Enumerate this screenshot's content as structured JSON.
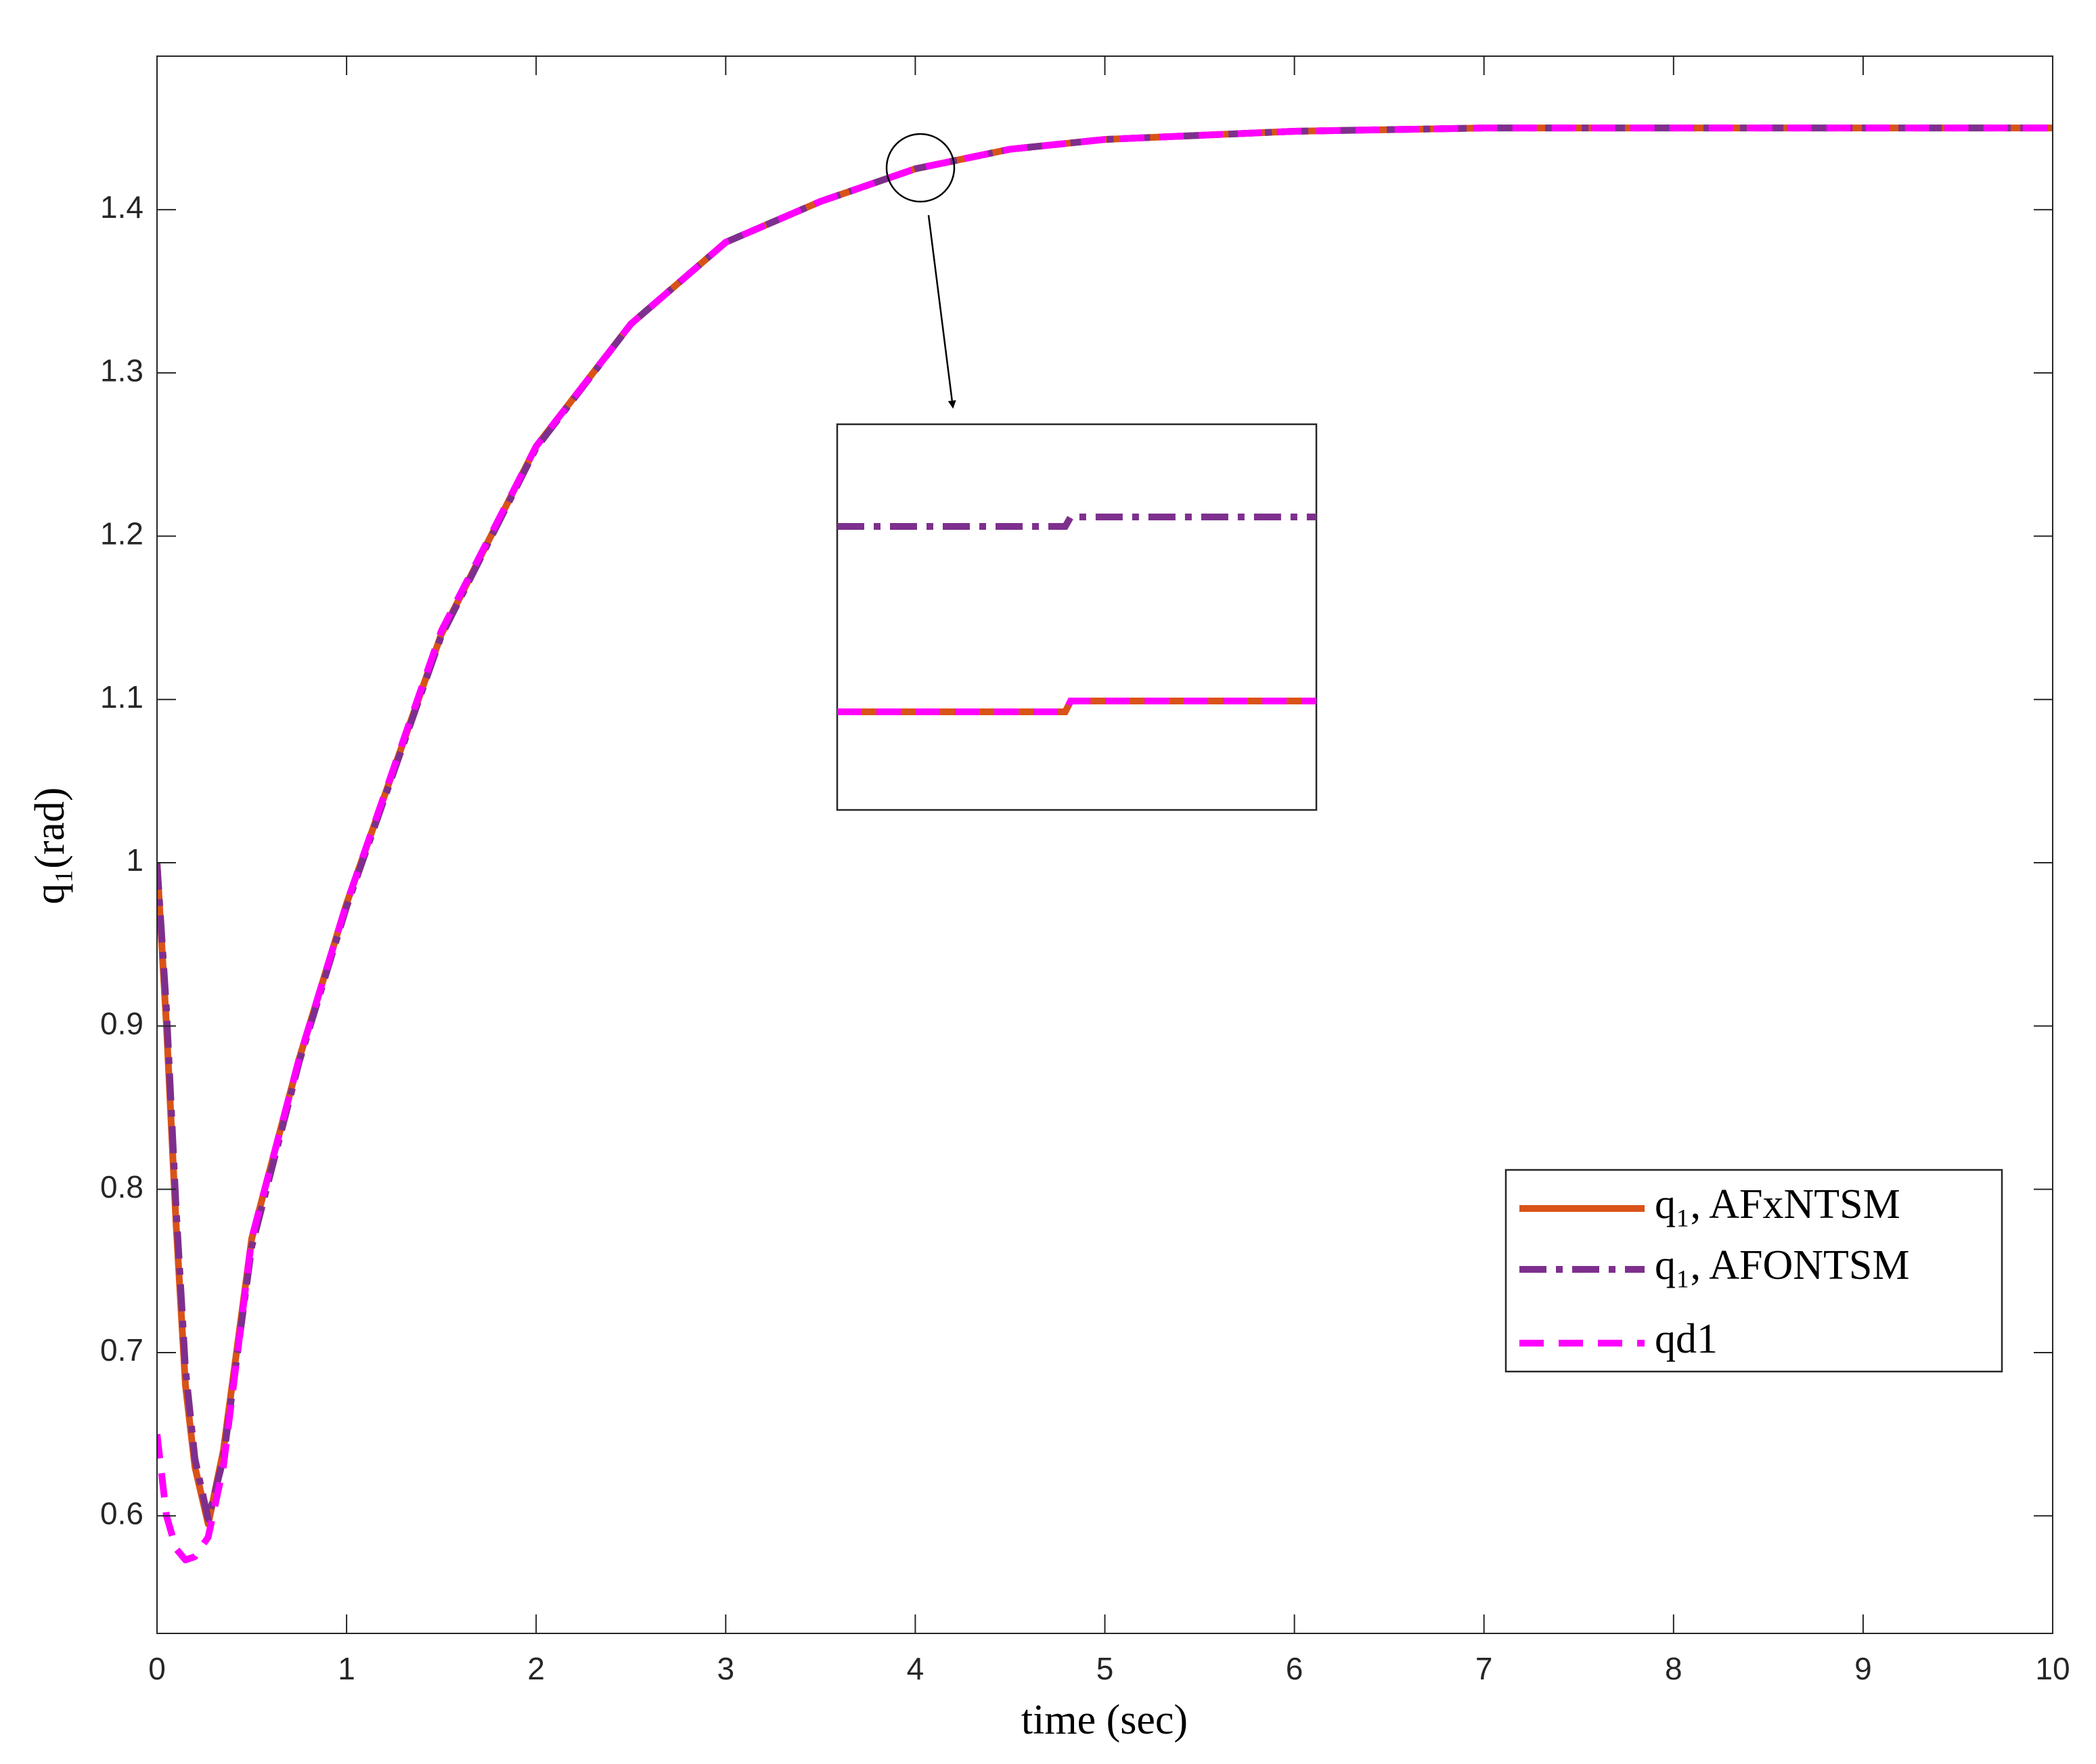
{
  "chart_data": {
    "type": "line",
    "xlabel": "time (sec)",
    "ylabel": "q₁(rad)",
    "x": [
      0,
      0.05,
      0.1,
      0.15,
      0.2,
      0.27,
      0.35,
      0.5,
      0.75,
      1,
      1.5,
      2,
      2.5,
      3,
      3.5,
      4,
      4.5,
      5,
      6,
      7,
      8,
      9,
      10
    ],
    "series": [
      {
        "name": "q₁, AFxNTSM",
        "color": "#d95319",
        "dash": "solid",
        "values": [
          1.0,
          0.9,
          0.78,
          0.68,
          0.63,
          0.595,
          0.64,
          0.77,
          0.88,
          0.975,
          1.14,
          1.255,
          1.33,
          1.38,
          1.405,
          1.425,
          1.437,
          1.443,
          1.448,
          1.45,
          1.45,
          1.45,
          1.45
        ]
      },
      {
        "name": "q₁, AFONTSM",
        "color": "#7e2f8e",
        "dash": "dashdot",
        "values": [
          1.0,
          0.91,
          0.79,
          0.69,
          0.635,
          0.598,
          0.635,
          0.765,
          0.878,
          0.973,
          1.139,
          1.254,
          1.33,
          1.38,
          1.405,
          1.425,
          1.437,
          1.443,
          1.448,
          1.45,
          1.45,
          1.45,
          1.45
        ]
      },
      {
        "name": "qd1",
        "color": "#ff00ff",
        "dash": "dashed",
        "values": [
          0.65,
          0.6,
          0.58,
          0.573,
          0.575,
          0.587,
          0.63,
          0.77,
          0.88,
          0.975,
          1.142,
          1.255,
          1.33,
          1.38,
          1.405,
          1.425,
          1.437,
          1.443,
          1.448,
          1.45,
          1.45,
          1.45,
          1.45
        ]
      }
    ],
    "xlim": [
      0,
      10
    ],
    "xticks": [
      0,
      1,
      2,
      3,
      4,
      5,
      6,
      7,
      8,
      9,
      10
    ],
    "ylim": [
      0.528,
      1.494
    ],
    "yticks": [
      0.6,
      0.7,
      0.8,
      0.9,
      1,
      1.1,
      1.2,
      1.3,
      1.4
    ],
    "grid": false,
    "legend": "lower right"
  }
}
